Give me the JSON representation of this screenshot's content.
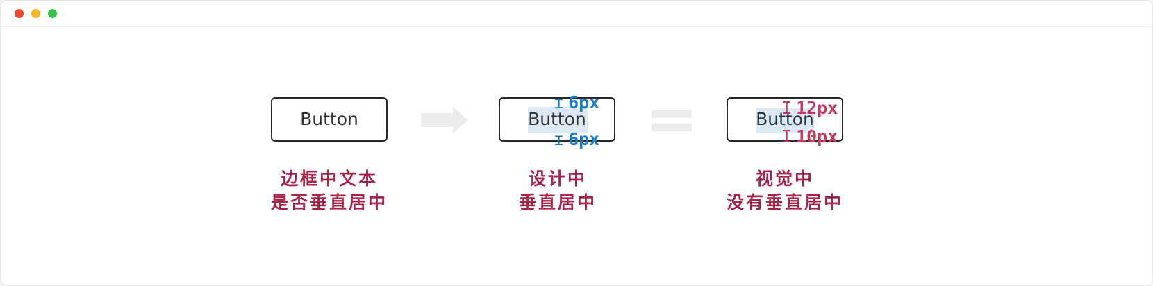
{
  "window": {
    "controls": {
      "close_color": "#e9492f",
      "minimize_color": "#f6b625",
      "maximize_color": "#33c148"
    }
  },
  "diagram": {
    "colors": {
      "caption": "#a8254a",
      "design_measure": "#1a7fc4",
      "visual_measure": "#c63a5e",
      "text_highlight": "#dce9f5",
      "connector": "#ececec"
    },
    "examples": [
      {
        "button_label": "Button",
        "caption_line1": "边框中文本",
        "caption_line2": "是否垂直居中"
      },
      {
        "button_label": "Button",
        "top_gap": "6px",
        "bottom_gap": "6px",
        "caption_line1": "设计中",
        "caption_line2": "垂直居中"
      },
      {
        "button_label": "Button",
        "top_gap": "12px",
        "bottom_gap": "10px",
        "caption_line1": "视觉中",
        "caption_line2": "没有垂直居中"
      }
    ],
    "connectors": [
      "arrow-right-icon",
      "equals-icon"
    ]
  }
}
